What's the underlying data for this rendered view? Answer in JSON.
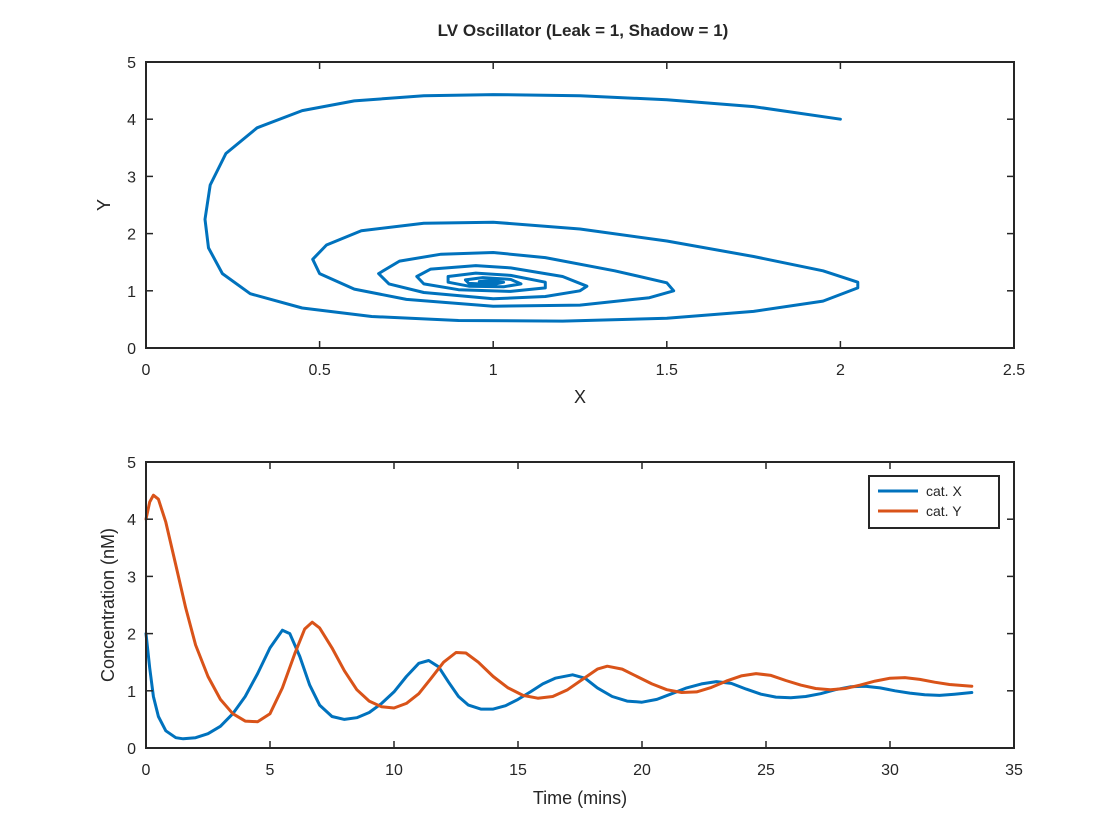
{
  "figure": {
    "title": "LV Oscillator (Leak = 1, Shadow = 1)"
  },
  "colors": {
    "series_x": "#0072BD",
    "series_y": "#D95319",
    "axes": "#262626"
  },
  "chart_data": [
    {
      "type": "line",
      "name": "phase-portrait",
      "title": "LV Oscillator (Leak = 1, Shadow = 1)",
      "xlabel": "X",
      "ylabel": "Y",
      "xlim": [
        0,
        2.5
      ],
      "ylim": [
        0,
        5
      ],
      "xticks": [
        "0",
        "0.5",
        "1",
        "1.5",
        "2",
        "2.5"
      ],
      "yticks": [
        "0",
        "1",
        "2",
        "3",
        "4",
        "5"
      ],
      "grid": false,
      "legend": null,
      "series": [
        {
          "color": "#0072BD",
          "points": [
            [
              2.0,
              4.0
            ],
            [
              1.75,
              4.22
            ],
            [
              1.5,
              4.34
            ],
            [
              1.25,
              4.41
            ],
            [
              1.0,
              4.43
            ],
            [
              0.8,
              4.41
            ],
            [
              0.6,
              4.32
            ],
            [
              0.45,
              4.15
            ],
            [
              0.32,
              3.85
            ],
            [
              0.23,
              3.4
            ],
            [
              0.185,
              2.85
            ],
            [
              0.17,
              2.25
            ],
            [
              0.18,
              1.75
            ],
            [
              0.22,
              1.3
            ],
            [
              0.3,
              0.95
            ],
            [
              0.45,
              0.7
            ],
            [
              0.65,
              0.55
            ],
            [
              0.9,
              0.48
            ],
            [
              1.2,
              0.47
            ],
            [
              1.5,
              0.52
            ],
            [
              1.75,
              0.64
            ],
            [
              1.95,
              0.82
            ],
            [
              2.05,
              1.05
            ],
            [
              2.05,
              1.15
            ],
            [
              1.95,
              1.35
            ],
            [
              1.75,
              1.6
            ],
            [
              1.5,
              1.87
            ],
            [
              1.25,
              2.08
            ],
            [
              1.0,
              2.2
            ],
            [
              0.8,
              2.18
            ],
            [
              0.62,
              2.05
            ],
            [
              0.52,
              1.8
            ],
            [
              0.48,
              1.55
            ],
            [
              0.5,
              1.3
            ],
            [
              0.6,
              1.03
            ],
            [
              0.75,
              0.85
            ],
            [
              1.0,
              0.73
            ],
            [
              1.25,
              0.75
            ],
            [
              1.45,
              0.88
            ],
            [
              1.52,
              1.0
            ],
            [
              1.5,
              1.14
            ],
            [
              1.35,
              1.35
            ],
            [
              1.15,
              1.58
            ],
            [
              1.0,
              1.67
            ],
            [
              0.85,
              1.64
            ],
            [
              0.73,
              1.52
            ],
            [
              0.67,
              1.3
            ],
            [
              0.7,
              1.12
            ],
            [
              0.8,
              0.97
            ],
            [
              1.0,
              0.86
            ],
            [
              1.15,
              0.9
            ],
            [
              1.25,
              1.0
            ],
            [
              1.27,
              1.08
            ],
            [
              1.2,
              1.25
            ],
            [
              1.05,
              1.4
            ],
            [
              0.95,
              1.44
            ],
            [
              0.82,
              1.38
            ],
            [
              0.78,
              1.25
            ],
            [
              0.8,
              1.12
            ],
            [
              0.9,
              1.02
            ],
            [
              1.05,
              0.99
            ],
            [
              1.15,
              1.05
            ],
            [
              1.15,
              1.15
            ],
            [
              1.05,
              1.27
            ],
            [
              0.95,
              1.31
            ],
            [
              0.87,
              1.25
            ],
            [
              0.87,
              1.15
            ],
            [
              0.93,
              1.08
            ],
            [
              1.03,
              1.07
            ],
            [
              1.08,
              1.12
            ],
            [
              1.05,
              1.2
            ],
            [
              0.97,
              1.23
            ],
            [
              0.92,
              1.19
            ],
            [
              0.93,
              1.13
            ],
            [
              1.0,
              1.11
            ],
            [
              1.03,
              1.15
            ],
            [
              0.99,
              1.18
            ],
            [
              0.96,
              1.16
            ],
            [
              0.98,
              1.14
            ],
            [
              1.0,
              1.15
            ]
          ]
        }
      ]
    },
    {
      "type": "line",
      "name": "time-series",
      "xlabel": "Time (mins)",
      "ylabel": "Concentration (nM)",
      "xlim": [
        0,
        35
      ],
      "ylim": [
        0,
        5
      ],
      "xticks": [
        "0",
        "5",
        "10",
        "15",
        "20",
        "25",
        "30",
        "35"
      ],
      "yticks": [
        "0",
        "1",
        "2",
        "3",
        "4",
        "5"
      ],
      "grid": false,
      "legend": "top-right",
      "series": [
        {
          "name": "cat. X",
          "color": "#0072BD",
          "points": [
            [
              0,
              2.0
            ],
            [
              0.15,
              1.4
            ],
            [
              0.3,
              0.9
            ],
            [
              0.5,
              0.55
            ],
            [
              0.8,
              0.3
            ],
            [
              1.2,
              0.18
            ],
            [
              1.5,
              0.16
            ],
            [
              2.0,
              0.18
            ],
            [
              2.5,
              0.25
            ],
            [
              3.0,
              0.38
            ],
            [
              3.5,
              0.6
            ],
            [
              4.0,
              0.9
            ],
            [
              4.5,
              1.3
            ],
            [
              5.0,
              1.75
            ],
            [
              5.5,
              2.06
            ],
            [
              5.8,
              2.0
            ],
            [
              6.2,
              1.6
            ],
            [
              6.6,
              1.1
            ],
            [
              7.0,
              0.75
            ],
            [
              7.5,
              0.55
            ],
            [
              8.0,
              0.5
            ],
            [
              8.5,
              0.53
            ],
            [
              9.0,
              0.62
            ],
            [
              9.5,
              0.78
            ],
            [
              10.0,
              0.98
            ],
            [
              10.5,
              1.25
            ],
            [
              11.0,
              1.48
            ],
            [
              11.4,
              1.53
            ],
            [
              11.8,
              1.42
            ],
            [
              12.2,
              1.15
            ],
            [
              12.6,
              0.9
            ],
            [
              13.0,
              0.75
            ],
            [
              13.5,
              0.68
            ],
            [
              14.0,
              0.68
            ],
            [
              14.5,
              0.74
            ],
            [
              15.0,
              0.85
            ],
            [
              15.5,
              0.98
            ],
            [
              16.0,
              1.12
            ],
            [
              16.5,
              1.22
            ],
            [
              17.2,
              1.28
            ],
            [
              17.7,
              1.22
            ],
            [
              18.2,
              1.05
            ],
            [
              18.8,
              0.9
            ],
            [
              19.4,
              0.82
            ],
            [
              20.0,
              0.8
            ],
            [
              20.6,
              0.85
            ],
            [
              21.2,
              0.95
            ],
            [
              21.8,
              1.05
            ],
            [
              22.4,
              1.12
            ],
            [
              23.0,
              1.16
            ],
            [
              23.6,
              1.13
            ],
            [
              24.2,
              1.03
            ],
            [
              24.8,
              0.94
            ],
            [
              25.4,
              0.89
            ],
            [
              26.0,
              0.88
            ],
            [
              26.6,
              0.9
            ],
            [
              27.2,
              0.95
            ],
            [
              27.8,
              1.02
            ],
            [
              28.4,
              1.07
            ],
            [
              29.0,
              1.08
            ],
            [
              29.6,
              1.05
            ],
            [
              30.2,
              1.0
            ],
            [
              30.8,
              0.96
            ],
            [
              31.4,
              0.93
            ],
            [
              32.0,
              0.92
            ],
            [
              32.6,
              0.94
            ],
            [
              33.3,
              0.97
            ]
          ]
        },
        {
          "name": "cat. Y",
          "color": "#D95319",
          "points": [
            [
              0,
              4.0
            ],
            [
              0.15,
              4.3
            ],
            [
              0.3,
              4.42
            ],
            [
              0.5,
              4.35
            ],
            [
              0.8,
              3.95
            ],
            [
              1.2,
              3.2
            ],
            [
              1.6,
              2.45
            ],
            [
              2.0,
              1.8
            ],
            [
              2.5,
              1.25
            ],
            [
              3.0,
              0.85
            ],
            [
              3.5,
              0.6
            ],
            [
              4.0,
              0.47
            ],
            [
              4.5,
              0.46
            ],
            [
              5.0,
              0.6
            ],
            [
              5.5,
              1.05
            ],
            [
              6.0,
              1.65
            ],
            [
              6.4,
              2.08
            ],
            [
              6.7,
              2.2
            ],
            [
              7.0,
              2.1
            ],
            [
              7.5,
              1.75
            ],
            [
              8.0,
              1.35
            ],
            [
              8.5,
              1.02
            ],
            [
              9.0,
              0.82
            ],
            [
              9.5,
              0.72
            ],
            [
              10.0,
              0.7
            ],
            [
              10.5,
              0.78
            ],
            [
              11.0,
              0.95
            ],
            [
              11.5,
              1.22
            ],
            [
              12.0,
              1.5
            ],
            [
              12.5,
              1.67
            ],
            [
              12.9,
              1.66
            ],
            [
              13.4,
              1.5
            ],
            [
              14.0,
              1.25
            ],
            [
              14.6,
              1.05
            ],
            [
              15.2,
              0.92
            ],
            [
              15.8,
              0.87
            ],
            [
              16.4,
              0.9
            ],
            [
              17.0,
              1.02
            ],
            [
              17.6,
              1.2
            ],
            [
              18.2,
              1.38
            ],
            [
              18.6,
              1.43
            ],
            [
              19.2,
              1.38
            ],
            [
              19.8,
              1.25
            ],
            [
              20.4,
              1.12
            ],
            [
              21.0,
              1.02
            ],
            [
              21.6,
              0.97
            ],
            [
              22.2,
              0.98
            ],
            [
              22.8,
              1.06
            ],
            [
              23.4,
              1.17
            ],
            [
              24.0,
              1.26
            ],
            [
              24.6,
              1.3
            ],
            [
              25.2,
              1.27
            ],
            [
              25.8,
              1.18
            ],
            [
              26.4,
              1.1
            ],
            [
              27.0,
              1.04
            ],
            [
              27.6,
              1.02
            ],
            [
              28.2,
              1.04
            ],
            [
              28.8,
              1.1
            ],
            [
              29.4,
              1.17
            ],
            [
              30.0,
              1.22
            ],
            [
              30.6,
              1.23
            ],
            [
              31.2,
              1.2
            ],
            [
              31.8,
              1.15
            ],
            [
              32.4,
              1.11
            ],
            [
              33.3,
              1.08
            ]
          ]
        }
      ]
    }
  ]
}
